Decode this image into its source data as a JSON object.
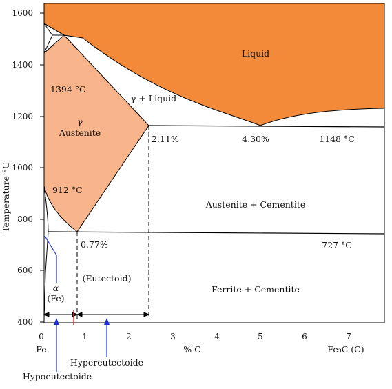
{
  "axes": {
    "y_label": "Temperature °C",
    "x_label": "% C",
    "y_ticks": [
      "1600",
      "1400",
      "1200",
      "1000",
      "800",
      "600",
      "400"
    ],
    "x_ticks": [
      "0",
      "1",
      "2",
      "3",
      "4",
      "5",
      "6",
      "7"
    ],
    "x_left_end": "Fe",
    "x_right_end": "Fe₃C (C)"
  },
  "regions": {
    "liquid": "Liquid",
    "gamma_liquid": "γ + Liquid",
    "gamma_symbol": "γ",
    "austenite": "Austenite",
    "austenite_cementite": "Austenite + Cementite",
    "eutectoid": "(Eutectoid)",
    "ferrite_cementite": "Ferrite + Cementite",
    "alpha_symbol": "α",
    "alpha_fe": "(Fe)"
  },
  "annotations": {
    "t1394": "1394 °C",
    "t912": "912 °C",
    "c211": "2.11%",
    "c430": "4.30%",
    "t1148": "1148 °C",
    "c077": "0.77%",
    "t727": "727 °C",
    "hypereutectoide": "Hypereutectoide",
    "hypoeutectoide": "Hypoeutectoide"
  },
  "colors": {
    "liquid_fill": "#f28a3a",
    "austenite_fill": "#f8b48a",
    "pointer_line": "#1a2fd6",
    "marker_red": "#e03030"
  }
}
